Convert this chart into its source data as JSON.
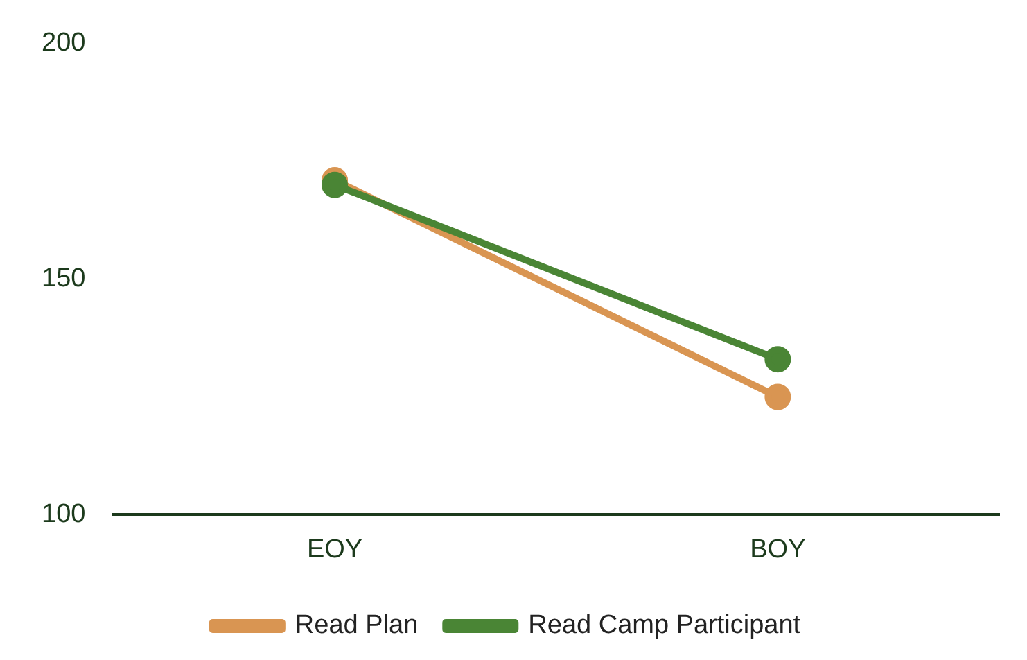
{
  "chart_data": {
    "type": "line",
    "categories": [
      "EOY",
      "BOY"
    ],
    "series": [
      {
        "name": "Read Plan",
        "color": "#d99552",
        "values": [
          171,
          125
        ]
      },
      {
        "name": "Read Camp Participant",
        "color": "#4a8535",
        "values": [
          170,
          133
        ]
      }
    ],
    "ylim": [
      100,
      200
    ],
    "yticks": [
      100,
      150,
      200
    ],
    "grid": false,
    "legend": "bottom",
    "marker": "circle",
    "line_style": "solid"
  }
}
